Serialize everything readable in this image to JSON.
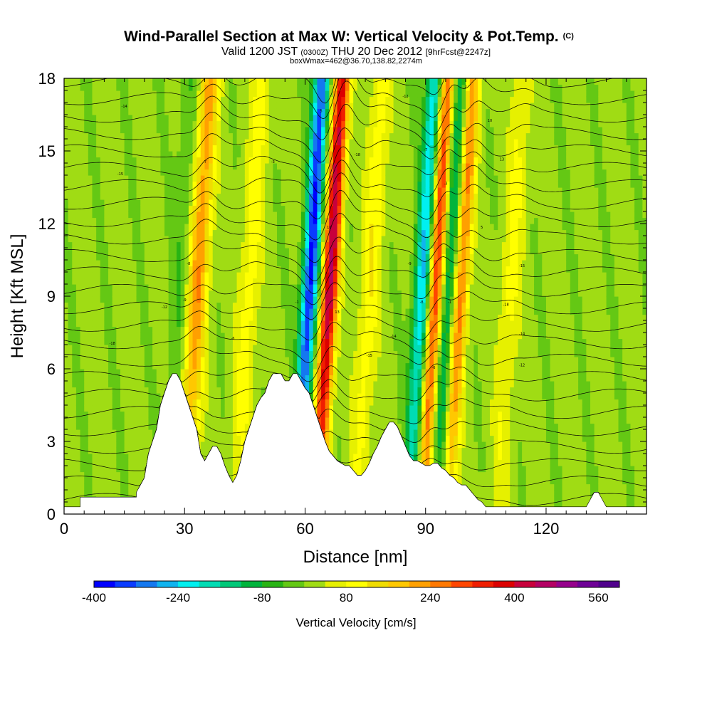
{
  "chart_data": {
    "type": "heatmap",
    "title": "Wind-Parallel Section at Max W: Vertical Velocity & Pot.Temp.",
    "title_mark": "(C)",
    "subtitle_parts": [
      "Valid 1200 JST ",
      "(0300Z)",
      " THU 20 Dec 2012 ",
      "[9hrFcst@2247z]"
    ],
    "subtitle2": "boxWmax=462@36.70,138.82,2274m",
    "xlabel": "Distance [nm]",
    "ylabel": "Height [Kft MSL]",
    "xlim": [
      0,
      145
    ],
    "ylim": [
      0,
      18
    ],
    "xticks": [
      0,
      30,
      60,
      90,
      120
    ],
    "yticks": [
      0,
      3,
      6,
      9,
      12,
      15,
      18
    ],
    "colorbar": {
      "label": "Vertical Velocity [cm/s]",
      "range": [
        -400,
        600
      ],
      "tick_values": [
        -400,
        -240,
        -80,
        80,
        240,
        400,
        560
      ],
      "colors": [
        "#0000ff",
        "#0a3cff",
        "#1478f0",
        "#10b4f0",
        "#00f0f0",
        "#00dcb4",
        "#00c878",
        "#00b43c",
        "#28b414",
        "#64c814",
        "#a0dc14",
        "#e6f000",
        "#ffff00",
        "#f0dc00",
        "#ffc800",
        "#ffa000",
        "#ff7800",
        "#ff4600",
        "#f01e00",
        "#dc0000",
        "#c8003c",
        "#b40064",
        "#96008c",
        "#6e0096",
        "#50008c"
      ]
    },
    "updraft_bands": [
      {
        "x": 32.0,
        "peak": 240
      },
      {
        "x": 45.0,
        "peak": 100
      },
      {
        "x": 65.0,
        "peak": 460
      },
      {
        "x": 75.0,
        "peak": 110
      },
      {
        "x": 91.5,
        "peak": 380
      },
      {
        "x": 97.5,
        "peak": 300
      },
      {
        "x": 110.0,
        "peak": 90
      }
    ],
    "downdraft_bands": [
      {
        "x": 60.0,
        "peak": -400
      },
      {
        "x": 88.0,
        "peak": -280
      },
      {
        "x": 94.5,
        "peak": -200
      },
      {
        "x": 28.0,
        "peak": -60
      }
    ],
    "terrain": [
      [
        0,
        0.3
      ],
      [
        4,
        0.3
      ],
      [
        4,
        0.7
      ],
      [
        18,
        0.7
      ],
      [
        18,
        0.9
      ],
      [
        19,
        1.2
      ],
      [
        20,
        1.5
      ],
      [
        20.5,
        2
      ],
      [
        21,
        2.5
      ],
      [
        22,
        3
      ],
      [
        23,
        3.5
      ],
      [
        23.5,
        4
      ],
      [
        24,
        4.5
      ],
      [
        25,
        5
      ],
      [
        26,
        5.5
      ],
      [
        27,
        5.8
      ],
      [
        28,
        5.8
      ],
      [
        29,
        5.5
      ],
      [
        30,
        5
      ],
      [
        31,
        4.5
      ],
      [
        32,
        4
      ],
      [
        33,
        3.5
      ],
      [
        33.5,
        3
      ],
      [
        34,
        2.5
      ],
      [
        35,
        2.2
      ],
      [
        36,
        2.5
      ],
      [
        37,
        2.8
      ],
      [
        38,
        2.8
      ],
      [
        39,
        2.5
      ],
      [
        40,
        2
      ],
      [
        41,
        1.6
      ],
      [
        42,
        1.3
      ],
      [
        43,
        1.6
      ],
      [
        44,
        2.2
      ],
      [
        45,
        3
      ],
      [
        46,
        3.5
      ],
      [
        47,
        4
      ],
      [
        48,
        4.5
      ],
      [
        49,
        4.8
      ],
      [
        50,
        5
      ],
      [
        51,
        5.5
      ],
      [
        52,
        5.8
      ],
      [
        53,
        5.8
      ],
      [
        54,
        5.8
      ],
      [
        55,
        5.5
      ],
      [
        56,
        5.5
      ],
      [
        57,
        5.8
      ],
      [
        58,
        5.8
      ],
      [
        59,
        5.5
      ],
      [
        60,
        5.2
      ],
      [
        61,
        5
      ],
      [
        62,
        4.5
      ],
      [
        63,
        4
      ],
      [
        64,
        3.5
      ],
      [
        65,
        3
      ],
      [
        66,
        2.6
      ],
      [
        67,
        2.4
      ],
      [
        68,
        2.2
      ],
      [
        69,
        2.1
      ],
      [
        70,
        2
      ],
      [
        71,
        2
      ],
      [
        72,
        1.8
      ],
      [
        73,
        1.6
      ],
      [
        74,
        1.6
      ],
      [
        75,
        1.8
      ],
      [
        76,
        2.1
      ],
      [
        77,
        2.5
      ],
      [
        78,
        2.8
      ],
      [
        79,
        3.2
      ],
      [
        80,
        3.5
      ],
      [
        81,
        3.8
      ],
      [
        82,
        3.8
      ],
      [
        83,
        3.6
      ],
      [
        84,
        3.2
      ],
      [
        85,
        2.8
      ],
      [
        86,
        2.4
      ],
      [
        87,
        2.2
      ],
      [
        88,
        2.2
      ],
      [
        89,
        2.1
      ],
      [
        90,
        2
      ],
      [
        91,
        2
      ],
      [
        92,
        2.1
      ],
      [
        93,
        2.1
      ],
      [
        94,
        1.9
      ],
      [
        95,
        1.8
      ],
      [
        96,
        1.6
      ],
      [
        97,
        1.5
      ],
      [
        98,
        1.3
      ],
      [
        99,
        1.2
      ],
      [
        100,
        1.2
      ],
      [
        101,
        1
      ],
      [
        102,
        0.8
      ],
      [
        103,
        0.6
      ],
      [
        104,
        0.5
      ],
      [
        105,
        0.3
      ],
      [
        120,
        0.3
      ],
      [
        130,
        0.3
      ],
      [
        131,
        0.6
      ],
      [
        132,
        0.9
      ],
      [
        133,
        0.9
      ],
      [
        134,
        0.6
      ],
      [
        135,
        0.3
      ],
      [
        145,
        0.3
      ]
    ],
    "isentrope_labels": [
      "-18",
      "-15",
      "-14",
      "-12",
      "-9",
      "-8",
      "-7",
      "-6",
      "-3",
      "-1",
      "2",
      "5",
      "10",
      "13"
    ]
  }
}
